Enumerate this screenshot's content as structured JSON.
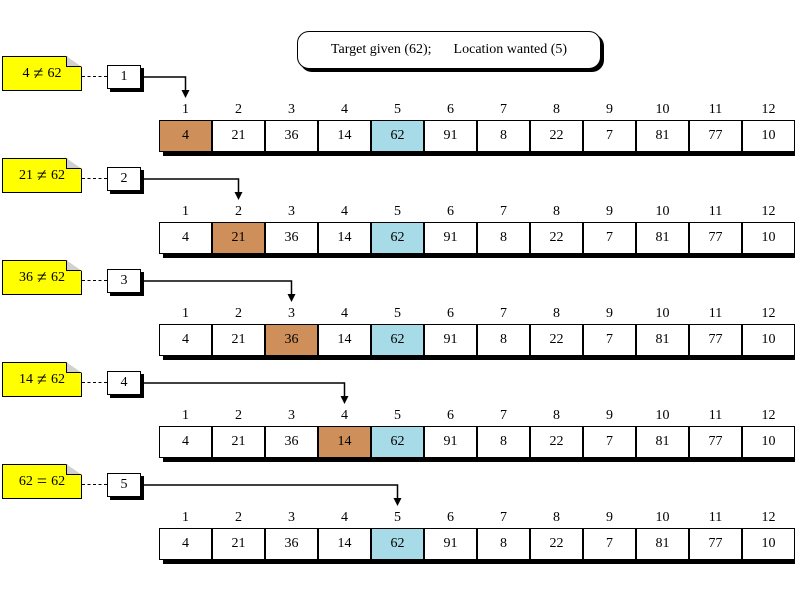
{
  "header": {
    "target_label": "Target given (62);",
    "location_label": "Location wanted (5)"
  },
  "array": {
    "indices": [
      "1",
      "2",
      "3",
      "4",
      "5",
      "6",
      "7",
      "8",
      "9",
      "10",
      "11",
      "12"
    ],
    "values": [
      "4",
      "21",
      "36",
      "14",
      "62",
      "91",
      "8",
      "22",
      "7",
      "81",
      "77",
      "10"
    ],
    "target_index": 5
  },
  "colors": {
    "current_cell": "#cf8f5a",
    "target_cell": "#a7dbe7",
    "note_fill": "#ffff00"
  },
  "steps": [
    {
      "step": "1",
      "current_index": 1,
      "left": "4",
      "op": "≠",
      "right": "62"
    },
    {
      "step": "2",
      "current_index": 2,
      "left": "21",
      "op": "≠",
      "right": "62"
    },
    {
      "step": "3",
      "current_index": 3,
      "left": "36",
      "op": "≠",
      "right": "62"
    },
    {
      "step": "4",
      "current_index": 4,
      "left": "14",
      "op": "≠",
      "right": "62"
    },
    {
      "step": "5",
      "current_index": 5,
      "left": "62",
      "op": "=",
      "right": "62"
    }
  ]
}
